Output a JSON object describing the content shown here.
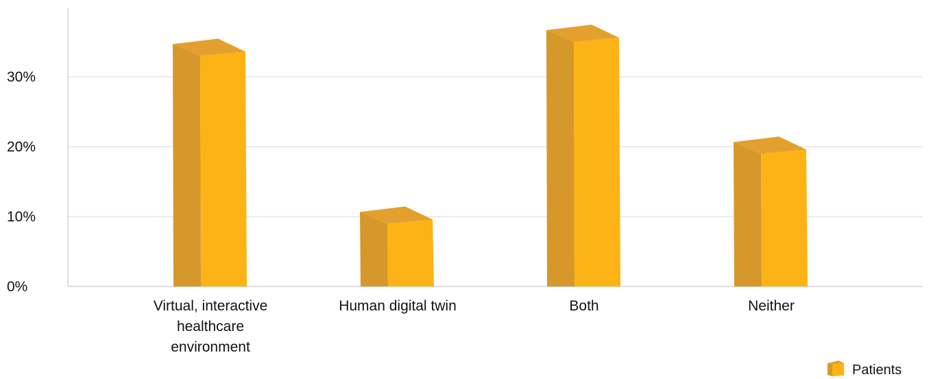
{
  "chart_data": {
    "type": "bar",
    "style": "3d-column",
    "categories": [
      "Virtual, interactive healthcare environment",
      "Human digital twin",
      "Both",
      "Neither"
    ],
    "category_lines": [
      [
        "Virtual, interactive",
        "healthcare",
        "environment"
      ],
      [
        "Human digital twin"
      ],
      [
        "Both"
      ],
      [
        "Neither"
      ]
    ],
    "series": [
      {
        "name": "Patients",
        "values": [
          33,
          9,
          35,
          19
        ]
      }
    ],
    "yticks": [
      "0%",
      "10%",
      "20%",
      "30%"
    ],
    "ytick_values": [
      0,
      10,
      20,
      30
    ],
    "ylim": [
      0,
      40
    ],
    "grid": true,
    "legend_position": "bottom-right",
    "colors": {
      "front": "#FCB316",
      "side": "#D6982A",
      "top": "#E3A02E",
      "grid": "#d8d8d8",
      "axis": "#bdbdbd"
    }
  }
}
